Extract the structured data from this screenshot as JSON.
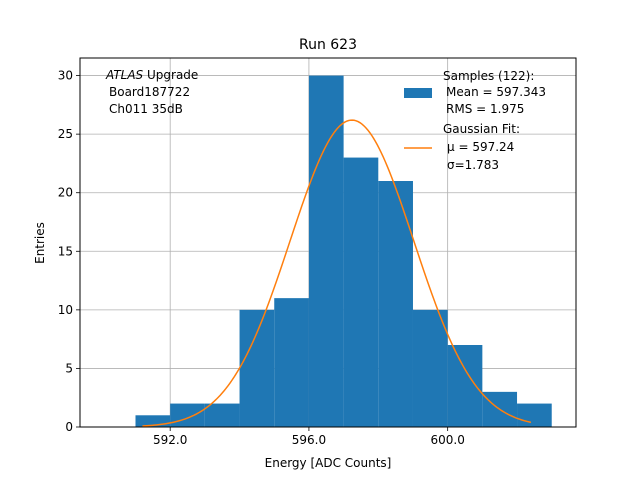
{
  "chart_data": {
    "type": "bar",
    "title": "Run 623",
    "xlabel": "Energy [ADC Counts]",
    "ylabel": "Entries",
    "xlim": [
      589.4,
      603.7
    ],
    "ylim": [
      0,
      31.5
    ],
    "grid": true,
    "xticks": [
      592.0,
      596.0,
      600.0
    ],
    "xtick_labels": [
      "592.0",
      "596.0",
      "600.0"
    ],
    "yticks": [
      0,
      5,
      10,
      15,
      20,
      25,
      30
    ],
    "ytick_labels": [
      "0",
      "5",
      "10",
      "15",
      "20",
      "25",
      "30"
    ],
    "annotation": {
      "italic": "ATLAS",
      "rest": " Upgrade",
      "line2": "Board187722",
      "line3": "Ch011 35dB"
    },
    "histogram": {
      "name_lines": [
        "Samples (122):",
        "Mean = 597.343",
        "RMS = 1.975"
      ],
      "color": "#1f77b4",
      "bins": [
        {
          "x0": 591.0,
          "x1": 592.0,
          "count": 1
        },
        {
          "x0": 592.0,
          "x1": 593.0,
          "count": 2
        },
        {
          "x0": 593.0,
          "x1": 594.0,
          "count": 2
        },
        {
          "x0": 594.0,
          "x1": 595.0,
          "count": 10
        },
        {
          "x0": 595.0,
          "x1": 596.0,
          "count": 11
        },
        {
          "x0": 596.0,
          "x1": 597.0,
          "count": 30
        },
        {
          "x0": 597.0,
          "x1": 598.0,
          "count": 23
        },
        {
          "x0": 598.0,
          "x1": 599.0,
          "count": 21
        },
        {
          "x0": 599.0,
          "x1": 600.0,
          "count": 10
        },
        {
          "x0": 600.0,
          "x1": 601.0,
          "count": 7
        },
        {
          "x0": 601.0,
          "x1": 602.0,
          "count": 3
        },
        {
          "x0": 602.0,
          "x1": 603.0,
          "count": 2
        }
      ]
    },
    "fit": {
      "name_lines": [
        "Gaussian Fit:",
        "μ = 597.24",
        "σ=1.783"
      ],
      "color": "#ff7f0e",
      "mu": 597.24,
      "sigma": 1.783,
      "amplitude": 26.2,
      "x_range": [
        591.2,
        602.4
      ]
    },
    "legend_position": "top-right"
  }
}
